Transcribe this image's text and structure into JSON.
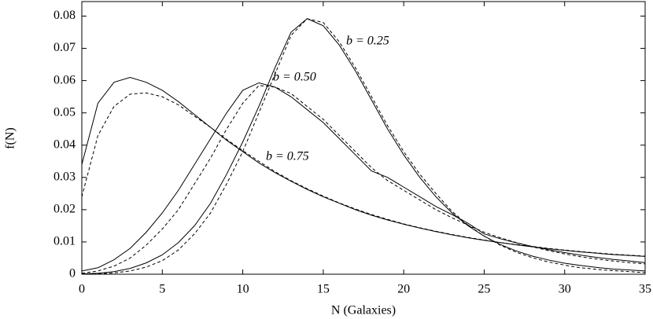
{
  "chart_data": {
    "type": "line",
    "x_label": "N (Galaxies)",
    "y_label": "f(N)",
    "x": [
      0,
      1,
      2,
      3,
      4,
      5,
      6,
      7,
      8,
      9,
      10,
      11,
      12,
      13,
      14,
      15,
      16,
      17,
      18,
      19,
      20,
      21,
      22,
      23,
      24,
      25,
      26,
      27,
      28,
      29,
      30,
      31,
      32,
      33,
      34,
      35
    ],
    "xlim": [
      0,
      35
    ],
    "xticks": [
      0,
      5,
      10,
      15,
      20,
      25,
      30,
      35
    ],
    "ylim": [
      0,
      0.0845
    ],
    "yticks": [
      0,
      0.01,
      0.02,
      0.03,
      0.04,
      0.05,
      0.06,
      0.07,
      0.08
    ],
    "annotations": [
      "b = 0.25",
      "b = 0.50",
      "b = 0.75"
    ],
    "series": [
      {
        "color": "#000000",
        "dashed": false,
        "values": [
          0.0001,
          0.0003,
          0.0008,
          0.0018,
          0.0035,
          0.006,
          0.0098,
          0.015,
          0.022,
          0.031,
          0.041,
          0.052,
          0.064,
          0.075,
          0.0792,
          0.077,
          0.071,
          0.063,
          0.054,
          0.045,
          0.037,
          0.03,
          0.024,
          0.019,
          0.015,
          0.0118,
          0.0092,
          0.0072,
          0.0056,
          0.0044,
          0.0034,
          0.0027,
          0.0021,
          0.0016,
          0.0013,
          0.001
        ]
      },
      {
        "color": "#000000",
        "dashed": true,
        "values": [
          0,
          0.0001,
          0.0004,
          0.001,
          0.0022,
          0.0042,
          0.0075,
          0.0125,
          0.019,
          0.028,
          0.038,
          0.05,
          0.062,
          0.074,
          0.0792,
          0.078,
          0.072,
          0.064,
          0.055,
          0.046,
          0.038,
          0.031,
          0.025,
          0.0195,
          0.0152,
          0.0118,
          0.009,
          0.0068,
          0.0051,
          0.0038,
          0.0028,
          0.002,
          0.0015,
          0.0011,
          0.0008,
          0.0005
        ]
      },
      {
        "color": "#000000",
        "dashed": false,
        "values": [
          0.001,
          0.002,
          0.0045,
          0.008,
          0.013,
          0.019,
          0.026,
          0.034,
          0.042,
          0.05,
          0.057,
          0.0593,
          0.058,
          0.055,
          0.051,
          0.047,
          0.042,
          0.037,
          0.032,
          0.03,
          0.027,
          0.024,
          0.021,
          0.0185,
          0.0158,
          0.0125,
          0.011,
          0.0097,
          0.0086,
          0.0076,
          0.0067,
          0.0059,
          0.0052,
          0.0046,
          0.0041,
          0.0036
        ]
      },
      {
        "color": "#000000",
        "dashed": true,
        "values": [
          0.0003,
          0.001,
          0.0025,
          0.005,
          0.009,
          0.014,
          0.02,
          0.028,
          0.036,
          0.045,
          0.053,
          0.0585,
          0.058,
          0.056,
          0.052,
          0.048,
          0.043,
          0.038,
          0.033,
          0.029,
          0.026,
          0.023,
          0.02,
          0.0175,
          0.0152,
          0.013,
          0.0113,
          0.0098,
          0.0085,
          0.0073,
          0.0063,
          0.0054,
          0.0047,
          0.0041,
          0.0036,
          0.0032
        ]
      },
      {
        "color": "#000000",
        "dashed": false,
        "values": [
          0.034,
          0.053,
          0.0595,
          0.061,
          0.0595,
          0.057,
          0.0535,
          0.0495,
          0.0455,
          0.0415,
          0.038,
          0.0345,
          0.0315,
          0.0288,
          0.0263,
          0.024,
          0.022,
          0.02,
          0.0183,
          0.0168,
          0.0155,
          0.0143,
          0.0132,
          0.0122,
          0.0113,
          0.0105,
          0.0098,
          0.0091,
          0.0085,
          0.0079,
          0.0074,
          0.0069,
          0.0065,
          0.0061,
          0.0058,
          0.0055
        ]
      },
      {
        "color": "#000000",
        "dashed": true,
        "values": [
          0.024,
          0.043,
          0.052,
          0.0558,
          0.0562,
          0.055,
          0.0525,
          0.049,
          0.0455,
          0.0418,
          0.0383,
          0.035,
          0.0318,
          0.029,
          0.0265,
          0.0242,
          0.0221,
          0.0202,
          0.0185,
          0.017,
          0.0156,
          0.0144,
          0.0133,
          0.0123,
          0.0114,
          0.0106,
          0.0098,
          0.0092,
          0.0086,
          0.008,
          0.0075,
          0.007,
          0.0066,
          0.0062,
          0.0059,
          0.0056
        ]
      }
    ]
  }
}
